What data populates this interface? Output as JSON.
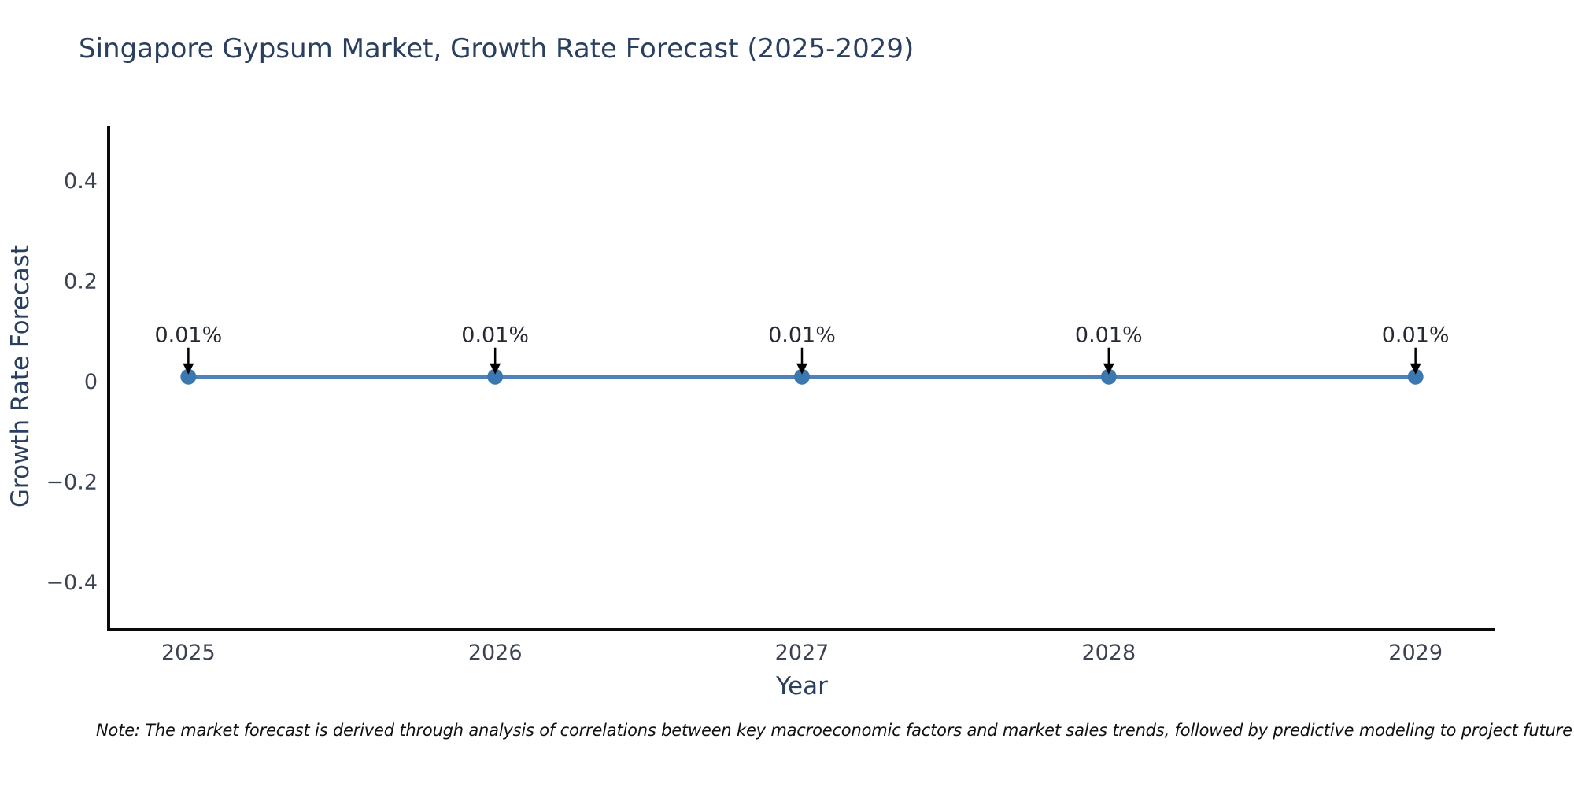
{
  "chart_data": {
    "type": "line",
    "title": "Singapore Gypsum Market, Growth Rate Forecast (2025-2029)",
    "xlabel": "Year",
    "ylabel": "Growth Rate Forecast",
    "x": [
      2025,
      2026,
      2027,
      2028,
      2029
    ],
    "values": [
      0.01,
      0.01,
      0.01,
      0.01,
      0.01
    ],
    "point_labels": [
      "0.01%",
      "0.01%",
      "0.01%",
      "0.01%",
      "0.01%"
    ],
    "xticks": [
      2025,
      2026,
      2027,
      2028,
      2029
    ],
    "xtick_labels": [
      "2025",
      "2026",
      "2027",
      "2028",
      "2029"
    ],
    "yticks": [
      -0.4,
      -0.2,
      0,
      0.2,
      0.4
    ],
    "ytick_labels": [
      "−0.4",
      "−0.2",
      "0",
      "0.2",
      "0.4"
    ],
    "xlim": [
      2024.74,
      2029.26
    ],
    "ylim": [
      -0.494,
      0.51
    ],
    "grid": false,
    "legend": null,
    "note": "Note: The market forecast is derived through analysis of correlations between key macroeconomic factors and market sales trends, followed by predictive modeling to project future sa",
    "colors": {
      "line": "#4d83b8",
      "marker": "#3c78b0",
      "arrow": "#000000",
      "spine": "#0a0a0a",
      "title_text": "#2a3f5f",
      "tick_text": "#3b4252",
      "annotation_text": "#262b33",
      "background": "#ffffff"
    }
  }
}
